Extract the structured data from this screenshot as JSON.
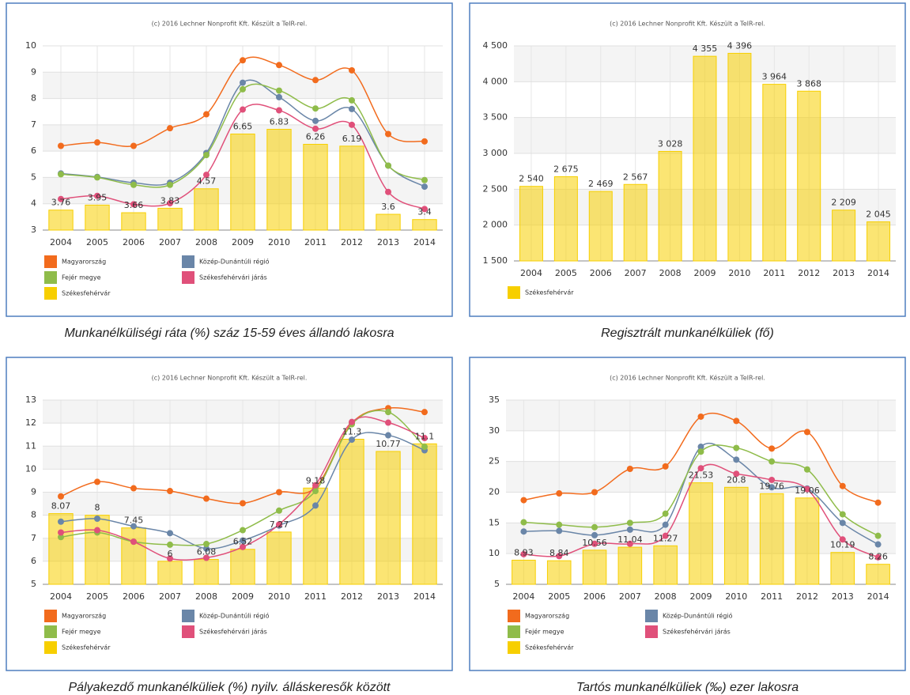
{
  "chart_data": [
    {
      "type": "combo",
      "credit": "(c) 2016 Lechner Nonprofit Kft. Készült a TeIR-rel.",
      "title": "Munkanélküliségi ráta (%) száz 15-59 éves állandó lakosra",
      "categories": [
        "2004",
        "2005",
        "2006",
        "2007",
        "2008",
        "2009",
        "2010",
        "2011",
        "2012",
        "2013",
        "2014"
      ],
      "ylim": [
        3,
        10
      ],
      "yticks": [
        3,
        4,
        5,
        6,
        7,
        8,
        9,
        10
      ],
      "grid": true,
      "series": [
        {
          "name": "Magyarország",
          "type": "line",
          "color": "#f26b1d",
          "values": [
            6.2,
            6.33,
            6.2,
            6.87,
            7.4,
            9.45,
            9.27,
            8.7,
            9.07,
            6.65,
            6.37
          ]
        },
        {
          "name": "Közép-Dunántúli régió",
          "type": "line",
          "color": "#6a86a8",
          "values": [
            5.15,
            5.02,
            4.8,
            4.8,
            5.93,
            8.6,
            8.05,
            7.15,
            7.6,
            5.45,
            4.65
          ]
        },
        {
          "name": "Fejér megye",
          "type": "line",
          "color": "#8fbc4a",
          "values": [
            5.12,
            5.0,
            4.72,
            4.72,
            5.85,
            8.35,
            8.3,
            7.62,
            7.93,
            5.45,
            4.9
          ]
        },
        {
          "name": "Székesfehérvári járás",
          "type": "line",
          "color": "#e0507a",
          "values": [
            4.18,
            4.3,
            3.98,
            4.02,
            5.1,
            7.58,
            7.55,
            6.85,
            7.0,
            4.45,
            3.8
          ]
        },
        {
          "name": "Székesfehérvár",
          "type": "bar",
          "color": "#f7cf00",
          "values": [
            3.76,
            3.95,
            3.66,
            3.83,
            4.57,
            6.65,
            6.83,
            6.26,
            6.19,
            3.6,
            3.4
          ]
        }
      ]
    },
    {
      "type": "bar",
      "credit": "(c) 2016 Lechner Nonprofit Kft. Készült a TeIR-rel.",
      "title": "Regisztrált munkanélküliek (fő)",
      "categories": [
        "2004",
        "2005",
        "2006",
        "2007",
        "2008",
        "2009",
        "2010",
        "2011",
        "2012",
        "2013",
        "2014"
      ],
      "ylim": [
        1500,
        4500
      ],
      "yticks": [
        {
          "value": 1500,
          "label": "1 500"
        },
        {
          "value": 2000,
          "label": "2 000"
        },
        {
          "value": 2500,
          "label": "2 500"
        },
        {
          "value": 3000,
          "label": "3 000"
        },
        {
          "value": 3500,
          "label": "3 500"
        },
        {
          "value": 4000,
          "label": "4 000"
        },
        {
          "value": 4500,
          "label": "4 500"
        }
      ],
      "grid": true,
      "series": [
        {
          "name": "Székesfehérvár",
          "type": "bar",
          "color": "#f7cf00",
          "values": [
            2540,
            2675,
            2469,
            2567,
            3028,
            4355,
            4396,
            3964,
            3868,
            2209,
            2045
          ],
          "value_labels": [
            "2 540",
            "2 675",
            "2 469",
            "2 567",
            "3 028",
            "4 355",
            "4 396",
            "3 964",
            "3 868",
            "2 209",
            "2 045"
          ]
        }
      ]
    },
    {
      "type": "combo",
      "credit": "(c) 2016 Lechner Nonprofit Kft. Készült a TeIR-rel.",
      "title": "Pályakezdő munkanélküliek (%) nyilv. álláskeresők között",
      "categories": [
        "2004",
        "2005",
        "2006",
        "2007",
        "2008",
        "2009",
        "2010",
        "2011",
        "2012",
        "2013",
        "2014"
      ],
      "ylim": [
        5,
        13
      ],
      "yticks": [
        5,
        6,
        7,
        8,
        9,
        10,
        11,
        12,
        13
      ],
      "grid": true,
      "series": [
        {
          "name": "Magyarország",
          "type": "line",
          "color": "#f26b1d",
          "values": [
            8.82,
            9.45,
            9.17,
            9.05,
            8.72,
            8.52,
            9.0,
            9.2,
            12.0,
            12.65,
            12.48
          ]
        },
        {
          "name": "Közép-Dunántúli régió",
          "type": "line",
          "color": "#6a86a8",
          "values": [
            7.72,
            7.85,
            7.52,
            7.22,
            6.55,
            6.9,
            7.55,
            8.42,
            11.28,
            11.47,
            10.82
          ]
        },
        {
          "name": "Fejér megye",
          "type": "line",
          "color": "#8fbc4a",
          "values": [
            7.05,
            7.25,
            6.85,
            6.72,
            6.75,
            7.35,
            8.2,
            9.05,
            11.95,
            12.48,
            10.97
          ]
        },
        {
          "name": "Székesfehérvári járás",
          "type": "line",
          "color": "#e0507a",
          "values": [
            7.25,
            7.35,
            6.85,
            6.12,
            6.15,
            6.62,
            7.6,
            9.3,
            12.05,
            12.02,
            11.35
          ]
        },
        {
          "name": "Székesfehérvár",
          "type": "bar",
          "color": "#f7cf00",
          "values": [
            8.07,
            8,
            7.45,
            6,
            6.08,
            6.52,
            7.27,
            9.18,
            11.3,
            10.77,
            11.1
          ]
        }
      ]
    },
    {
      "type": "combo",
      "credit": "(c) 2016 Lechner Nonprofit Kft. Készült a TeIR-rel.",
      "title": "Tartós munkanélküliek (‰) ezer lakosra",
      "categories": [
        "2004",
        "2005",
        "2006",
        "2007",
        "2008",
        "2009",
        "2010",
        "2011",
        "2012",
        "2013",
        "2014"
      ],
      "ylim": [
        5,
        35
      ],
      "yticks": [
        5,
        10,
        15,
        20,
        25,
        30,
        35
      ],
      "grid": true,
      "series": [
        {
          "name": "Magyarország",
          "type": "line",
          "color": "#f26b1d",
          "values": [
            18.7,
            19.8,
            20.0,
            23.8,
            24.2,
            32.3,
            31.6,
            27.1,
            29.8,
            21.0,
            18.3
          ]
        },
        {
          "name": "Közép-Dunántúli régió",
          "type": "line",
          "color": "#6a86a8",
          "values": [
            13.6,
            13.7,
            13.0,
            13.9,
            14.7,
            27.4,
            25.3,
            20.8,
            20.6,
            15.0,
            11.5
          ]
        },
        {
          "name": "Fejér megye",
          "type": "line",
          "color": "#8fbc4a",
          "values": [
            15.1,
            14.7,
            14.3,
            15.0,
            16.5,
            26.6,
            27.2,
            25.0,
            23.7,
            16.4,
            12.9
          ]
        },
        {
          "name": "Székesfehérvári járás",
          "type": "line",
          "color": "#e0507a",
          "values": [
            9.9,
            9.6,
            11.6,
            11.6,
            12.9,
            23.9,
            23.0,
            22.0,
            20.5,
            12.3,
            9.4
          ]
        },
        {
          "name": "Székesfehérvár",
          "type": "bar",
          "color": "#f7cf00",
          "values": [
            8.93,
            8.84,
            10.56,
            11.04,
            11.27,
            21.53,
            20.8,
            19.76,
            19.06,
            10.19,
            8.26
          ]
        }
      ]
    }
  ]
}
